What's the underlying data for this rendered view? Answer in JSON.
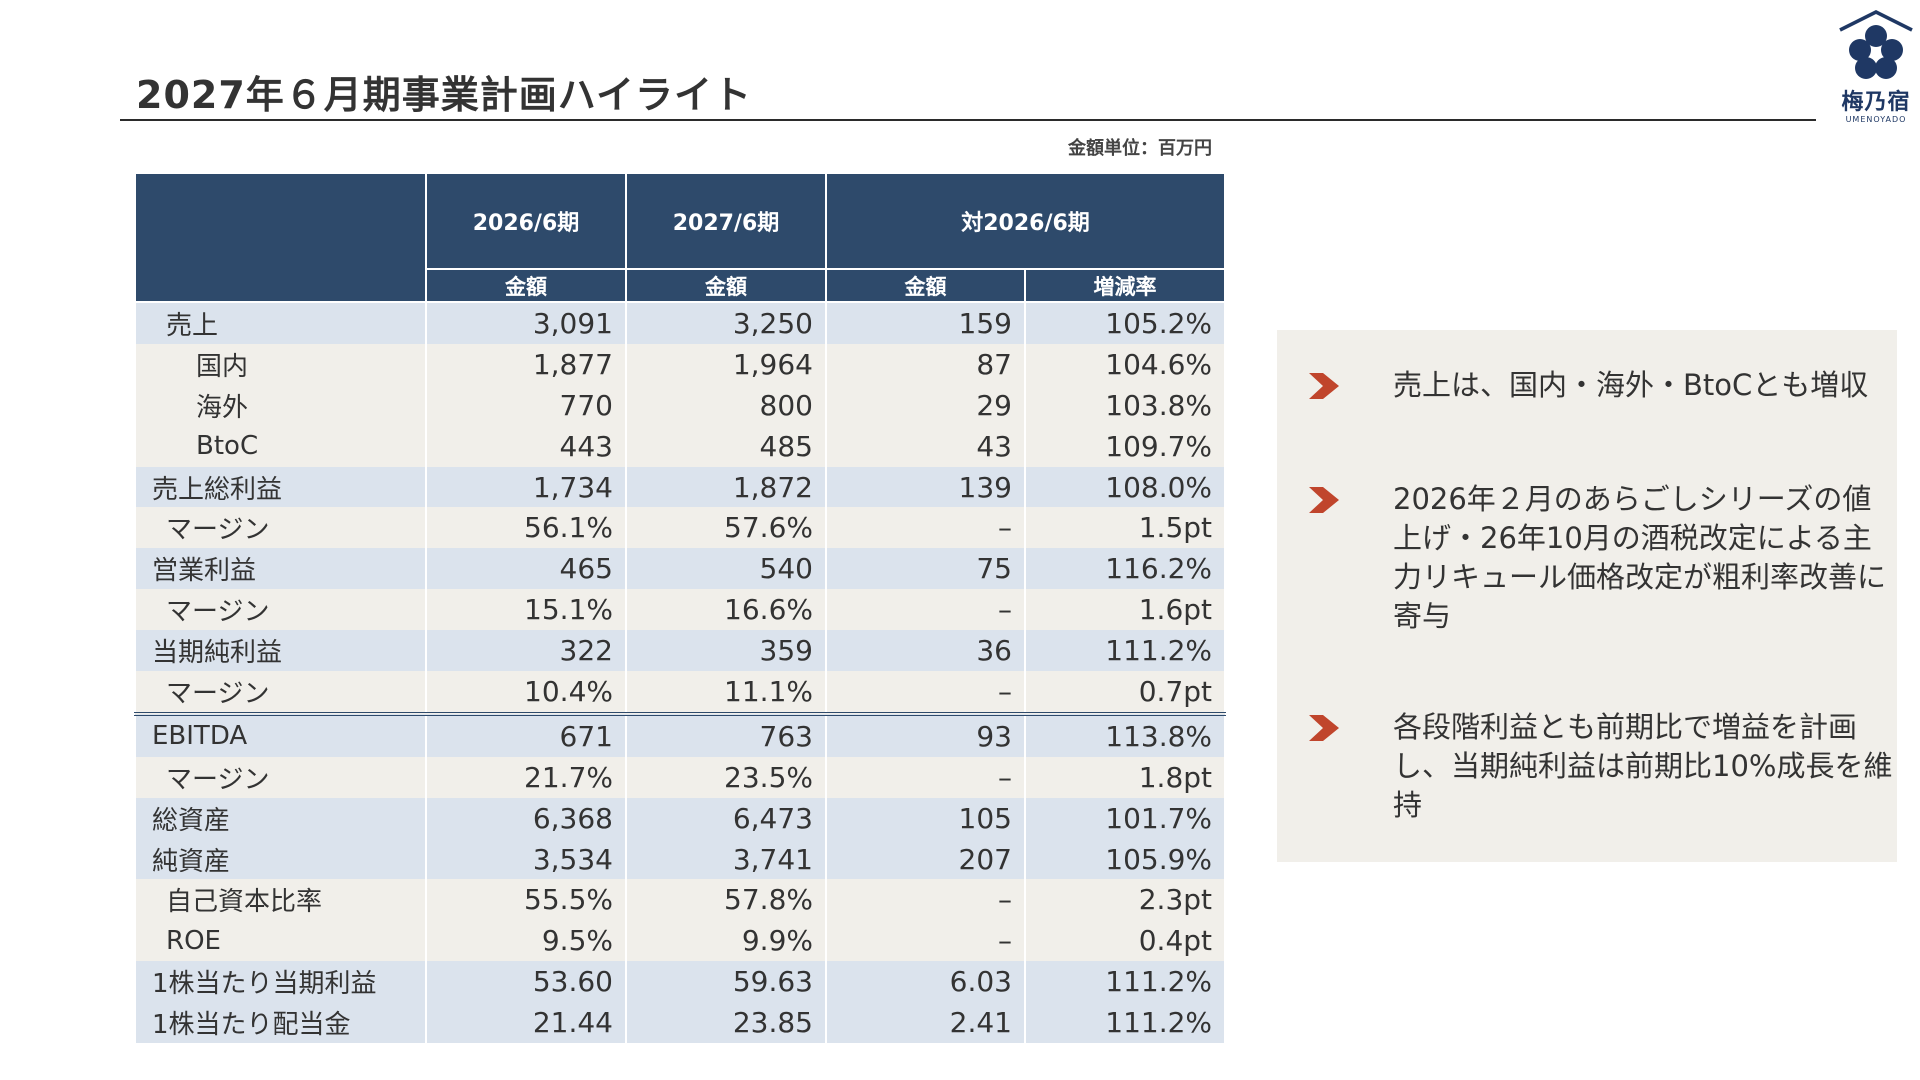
{
  "title": "2027年６月期事業計画ハイライト",
  "logo": {
    "mark": "梅乃宿",
    "sub": "UMENOYADO"
  },
  "unit_note": "金額単位：百万円",
  "table": {
    "head": {
      "col1": "2026/6期",
      "col2": "2027/6期",
      "col3": "対2026/6期",
      "sub1": "金額",
      "sub2": "金額",
      "sub3": "金額",
      "sub4": "増減率"
    },
    "rows": [
      {
        "label": "売上",
        "v1": "3,091",
        "v2": "3,250",
        "diff": "159",
        "rate": "105.2%"
      },
      {
        "label": "国内",
        "v1": "1,877",
        "v2": "1,964",
        "diff": "87",
        "rate": "104.6%"
      },
      {
        "label": "海外",
        "v1": "770",
        "v2": "800",
        "diff": "29",
        "rate": "103.8%"
      },
      {
        "label": "BtoC",
        "v1": "443",
        "v2": "485",
        "diff": "43",
        "rate": "109.7%"
      },
      {
        "label": "売上総利益",
        "v1": "1,734",
        "v2": "1,872",
        "diff": "139",
        "rate": "108.0%"
      },
      {
        "label": "マージン",
        "v1": "56.1%",
        "v2": "57.6%",
        "diff": "–",
        "rate": "1.5pt"
      },
      {
        "label": "営業利益",
        "v1": "465",
        "v2": "540",
        "diff": "75",
        "rate": "116.2%"
      },
      {
        "label": "マージン",
        "v1": "15.1%",
        "v2": "16.6%",
        "diff": "–",
        "rate": "1.6pt"
      },
      {
        "label": "当期純利益",
        "v1": "322",
        "v2": "359",
        "diff": "36",
        "rate": "111.2%"
      },
      {
        "label": "マージン",
        "v1": "10.4%",
        "v2": "11.1%",
        "diff": "–",
        "rate": "0.7pt"
      },
      {
        "label": "EBITDA",
        "v1": "671",
        "v2": "763",
        "diff": "93",
        "rate": "113.8%"
      },
      {
        "label": "マージン",
        "v1": "21.7%",
        "v2": "23.5%",
        "diff": "–",
        "rate": "1.8pt"
      },
      {
        "label": "総資産",
        "v1": "6,368",
        "v2": "6,473",
        "diff": "105",
        "rate": "101.7%"
      },
      {
        "label": "純資産",
        "v1": "3,534",
        "v2": "3,741",
        "diff": "207",
        "rate": "105.9%"
      },
      {
        "label": "自己資本比率",
        "v1": "55.5%",
        "v2": "57.8%",
        "diff": "–",
        "rate": "2.3pt"
      },
      {
        "label": "ROE",
        "v1": "9.5%",
        "v2": "9.9%",
        "diff": "–",
        "rate": "0.4pt"
      },
      {
        "label": "1株当たり当期利益",
        "v1": "53.60",
        "v2": "59.63",
        "diff": "6.03",
        "rate": "111.2%"
      },
      {
        "label": "1株当たり配当金",
        "v1": "21.44",
        "v2": "23.85",
        "diff": "2.41",
        "rate": "111.2%"
      }
    ]
  },
  "notes": [
    {
      "icon": "chevron-right-icon",
      "text": "売上は、国内・海外・BtoCとも増収"
    },
    {
      "icon": "chevron-right-icon",
      "text": "2026年２月のあらごしシリーズの値上げ・26年10月の酒税改定による主力リキュール価格改定が粗利率改善に寄与"
    },
    {
      "icon": "chevron-right-icon",
      "text": "各段階利益とも前期比で増益を計画し、当期純利益は前期比10%成長を維持"
    }
  ],
  "colors": {
    "header": "#2e4a6b",
    "row_blue": "#dbe3ed",
    "row_cream": "#f1efea",
    "chevron": "#c0452c",
    "logo": "#1f3864"
  }
}
